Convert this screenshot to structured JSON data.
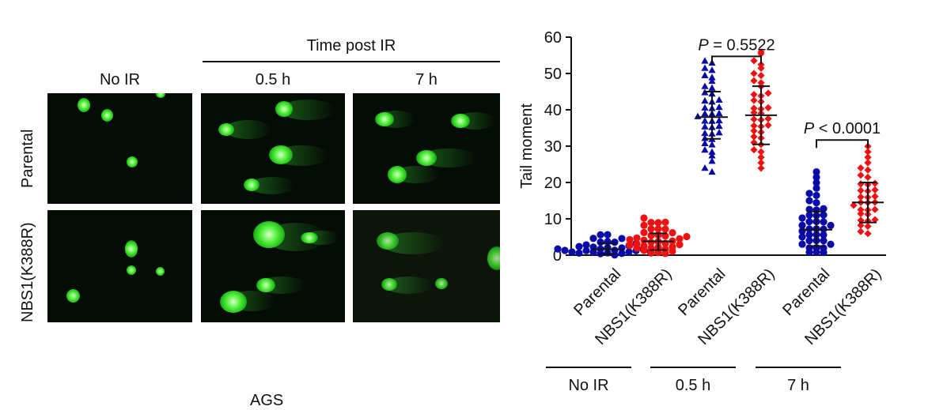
{
  "micrographs": {
    "header": "Time post IR",
    "columns": [
      "No IR",
      "0.5 h",
      "7 h"
    ],
    "rows": [
      "Parental",
      "NBS1(K388R)"
    ],
    "caption": "AGS"
  },
  "colors": {
    "parental": "#0a0aa8",
    "mutant": "#ee1111",
    "panel_bg": "#050b05",
    "nucleus": "#4cf03a"
  },
  "chart_data": {
    "type": "scatter",
    "ylabel": "Tail moment",
    "ylim": [
      0,
      60
    ],
    "yticks": [
      0,
      10,
      20,
      30,
      40,
      50,
      60
    ],
    "categories": [
      "Parental",
      "NBS1(K388R)",
      "Parental",
      "NBS1(K388R)",
      "Parental",
      "NBS1(K388R)"
    ],
    "groups": [
      "No IR",
      "0.5 h",
      "7 h"
    ],
    "grid": false,
    "series": [
      {
        "category_index": 0,
        "marker": "circle",
        "color": "#0a0aa8",
        "mean": 1.6,
        "sd_low": 0.3,
        "sd_high": 3.2,
        "values": [
          0.2,
          0.4,
          0.5,
          0.6,
          0.7,
          0.8,
          0.9,
          1.0,
          1.0,
          1.1,
          1.2,
          1.3,
          1.4,
          1.5,
          1.6,
          1.7,
          1.8,
          2.0,
          2.2,
          2.4,
          2.6,
          2.8,
          3.0,
          3.3,
          3.6,
          4.0,
          4.4,
          4.8,
          5.2,
          5.6
        ]
      },
      {
        "category_index": 1,
        "marker": "circle",
        "color": "#ee1111",
        "mean": 3.8,
        "sd_low": 1.4,
        "sd_high": 6.0,
        "values": [
          0.3,
          0.6,
          0.9,
          1.1,
          1.3,
          1.5,
          1.7,
          1.9,
          2.1,
          2.3,
          2.5,
          2.7,
          2.9,
          3.1,
          3.3,
          3.5,
          3.7,
          3.9,
          4.1,
          4.3,
          4.5,
          4.7,
          4.9,
          5.1,
          5.4,
          5.7,
          6.0,
          6.4,
          6.8,
          7.2,
          7.6,
          8.0,
          8.5,
          9.0,
          9.5,
          10.0
        ]
      },
      {
        "category_index": 2,
        "marker": "triangle",
        "color": "#0a0aa8",
        "mean": 38.0,
        "sd_low": 32.0,
        "sd_high": 45.0,
        "values": [
          22.5,
          24,
          25.5,
          27,
          28,
          29,
          30,
          30.8,
          31.5,
          32.2,
          33,
          33.6,
          34.2,
          34.8,
          35.4,
          36,
          36.5,
          37,
          37.5,
          38,
          38.5,
          39,
          39.5,
          40,
          40.6,
          41.2,
          41.8,
          42.5,
          43.2,
          44,
          44.8,
          45.6,
          46.5,
          47.5,
          48.5,
          49.5,
          50.5,
          51.5,
          52.5,
          53.5
        ]
      },
      {
        "category_index": 3,
        "marker": "diamond",
        "color": "#ee1111",
        "mean": 38.5,
        "sd_low": 30.5,
        "sd_high": 46.5,
        "values": [
          23.5,
          25,
          26.5,
          28,
          29,
          30,
          31,
          31.8,
          32.6,
          33.4,
          34.2,
          35,
          35.6,
          36.2,
          36.8,
          37.4,
          38,
          38.6,
          39.2,
          39.8,
          40.4,
          41,
          41.8,
          42.6,
          43.4,
          44.2,
          45,
          46,
          47,
          48,
          49,
          50,
          51,
          52,
          53.5,
          55,
          55.5
        ]
      },
      {
        "category_index": 4,
        "marker": "circle",
        "color": "#0a0aa8",
        "mean": 7.0,
        "sd_low": 2.5,
        "sd_high": 12.0,
        "values": [
          0.4,
          0.8,
          1.2,
          1.6,
          2.0,
          2.4,
          2.8,
          3.2,
          3.6,
          4.0,
          4.4,
          4.8,
          5.2,
          5.6,
          6.0,
          6.4,
          6.8,
          7.2,
          7.6,
          8.0,
          8.4,
          8.8,
          9.2,
          9.6,
          10.0,
          10.5,
          11.0,
          11.5,
          12.0,
          12.6,
          13.2,
          14.0,
          15.0,
          16.0,
          17.0,
          18.0,
          19.5,
          21.0,
          22.5
        ]
      },
      {
        "category_index": 5,
        "marker": "diamond",
        "color": "#ee1111",
        "mean": 14.5,
        "sd_low": 9.0,
        "sd_high": 20.0,
        "values": [
          5.5,
          6.5,
          7.5,
          8.2,
          9.0,
          9.6,
          10.2,
          10.8,
          11.4,
          12.0,
          12.5,
          13.0,
          13.5,
          14.0,
          14.5,
          15.0,
          15.5,
          16.0,
          16.6,
          17.2,
          17.8,
          18.4,
          19.0,
          19.6,
          20.2,
          21.0,
          22.0,
          23.0,
          24.0,
          25.0,
          26.5,
          28.0,
          29.5
        ]
      }
    ],
    "annotations": [
      {
        "text_prefix": "P",
        "text_rest": " = 0.5522",
        "between": [
          2,
          3
        ],
        "y": 56
      },
      {
        "text_prefix": "P",
        "text_rest": " < 0.0001",
        "between": [
          4,
          5
        ],
        "y": 33
      }
    ]
  }
}
